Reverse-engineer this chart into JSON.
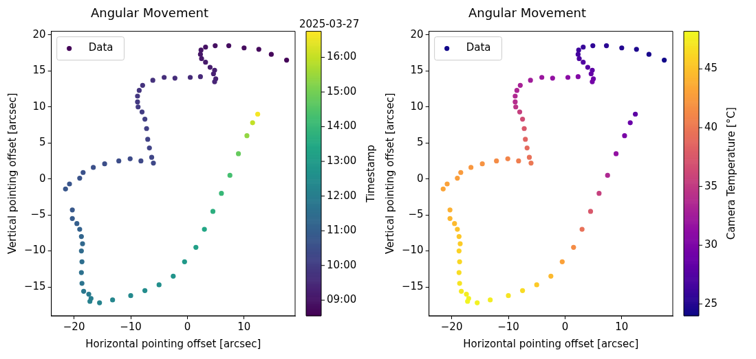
{
  "chart_data": [
    {
      "type": "scatter",
      "title": "Angular Movement",
      "xlabel": "Horizontal pointing offset [arcsec]",
      "ylabel": "Vertical pointing offset [arcsec]",
      "clabel": "Timestamp",
      "annotations": [
        "2025-03-27"
      ],
      "xlim": [
        -24,
        19
      ],
      "ylim": [
        -19,
        20.5
      ],
      "xticks": [
        -20,
        -10,
        0,
        10
      ],
      "yticks": [
        -15,
        -10,
        -5,
        0,
        5,
        10,
        15,
        20
      ],
      "clim": [
        8.55,
        16.75
      ],
      "cticks": [
        {
          "value": 9,
          "label": "09:00"
        },
        {
          "value": 10,
          "label": "10:00"
        },
        {
          "value": 11,
          "label": "11:00"
        },
        {
          "value": 12,
          "label": "12:00"
        },
        {
          "value": 13,
          "label": "13:00"
        },
        {
          "value": 14,
          "label": "14:00"
        },
        {
          "value": 15,
          "label": "15:00"
        },
        {
          "value": 16,
          "label": "16:00"
        }
      ],
      "grid": false,
      "legend": "top left",
      "marker": "circle",
      "series": [
        {
          "name": "Data",
          "x": [
            17.5,
            14.8,
            12.6,
            10.0,
            7.3,
            4.9,
            3.2,
            2.4,
            2.3,
            2.5,
            3.2,
            4.0,
            4.8,
            4.6,
            5.0,
            4.8,
            2.3,
            0.5,
            -2.2,
            -4.1,
            -6.1,
            -7.9,
            -8.5,
            -8.8,
            -8.8,
            -8.7,
            -8.0,
            -7.5,
            -7.2,
            -7.0,
            -6.7,
            -6.3,
            -6.0,
            -8.2,
            -10.1,
            -12.1,
            -14.6,
            -16.6,
            -18.4,
            -19.0,
            -20.8,
            -21.5,
            -20.3,
            -20.3,
            -19.5,
            -19.0,
            -18.7,
            -18.5,
            -18.7,
            -18.6,
            -18.7,
            -18.6,
            -18.3,
            -17.4,
            -17.0,
            -17.2,
            -15.5,
            -13.2,
            -10.0,
            -7.5,
            -5.0,
            -2.5,
            -0.5,
            1.5,
            3.0,
            4.5,
            6.0,
            7.5,
            9.0,
            10.5,
            11.5,
            12.4
          ],
          "values": [
            16.5,
            17.3,
            18.0,
            18.2,
            18.5,
            18.5,
            18.3,
            17.9,
            17.3,
            16.7,
            16.2,
            15.5,
            15.1,
            14.6,
            13.9,
            13.5,
            14.2,
            14.1,
            14.0,
            14.1,
            13.7,
            13.0,
            12.3,
            11.5,
            10.7,
            10.0,
            9.3,
            8.3,
            7.0,
            5.5,
            4.3,
            3.0,
            2.2,
            2.5,
            2.8,
            2.5,
            2.1,
            1.6,
            0.9,
            0.1,
            -0.7,
            -1.4,
            -4.3,
            -5.5,
            -6.2,
            -7.0,
            -8.0,
            -9.0,
            -10.0,
            -11.5,
            -13.0,
            -14.5,
            -15.6,
            -16.0,
            -16.6,
            -17.0,
            -17.2,
            -16.8,
            -16.2,
            -15.5,
            -14.7,
            -13.5,
            -11.5,
            -9.5,
            -7.0,
            -4.5,
            -2.0,
            0.5,
            3.5,
            6.0,
            7.8,
            9.0
          ],
          "cvalues": [
            8.65,
            8.7,
            8.75,
            8.8,
            8.85,
            8.9,
            8.95,
            9.0,
            9.05,
            9.1,
            9.15,
            9.2,
            9.25,
            9.3,
            9.35,
            9.4,
            9.5,
            9.55,
            9.6,
            9.65,
            9.7,
            9.75,
            9.8,
            9.85,
            9.9,
            9.95,
            10.0,
            10.05,
            10.1,
            10.15,
            10.2,
            10.25,
            10.3,
            10.35,
            10.4,
            10.45,
            10.5,
            10.55,
            10.6,
            10.65,
            10.7,
            10.75,
            10.8,
            10.9,
            11.0,
            11.1,
            11.2,
            11.3,
            11.4,
            11.5,
            11.6,
            11.7,
            11.8,
            11.9,
            12.0,
            12.1,
            12.2,
            12.3,
            12.4,
            12.5,
            12.6,
            12.75,
            12.95,
            13.15,
            13.4,
            13.7,
            14.0,
            14.3,
            14.8,
            15.4,
            16.0,
            16.65
          ]
        }
      ]
    },
    {
      "type": "scatter",
      "title": "Angular Movement",
      "xlabel": "Horizontal pointing offset [arcsec]",
      "ylabel": "Vertical pointing offset [arcsec]",
      "clabel": "Camera Temperature [°C]",
      "xlim": [
        -24,
        19
      ],
      "ylim": [
        -19,
        20.5
      ],
      "xticks": [
        -20,
        -10,
        0,
        10
      ],
      "yticks": [
        -15,
        -10,
        -5,
        0,
        5,
        10,
        15,
        20
      ],
      "clim": [
        24,
        48.2
      ],
      "cticks": [
        25,
        30,
        35,
        40,
        45
      ],
      "grid": false,
      "legend": "top left",
      "marker": "circle",
      "series": [
        {
          "name": "Data",
          "x": [
            17.5,
            14.8,
            12.6,
            10.0,
            7.3,
            4.9,
            3.2,
            2.4,
            2.3,
            2.5,
            3.2,
            4.0,
            4.8,
            4.6,
            5.0,
            4.8,
            2.3,
            0.5,
            -2.2,
            -4.1,
            -6.1,
            -7.9,
            -8.5,
            -8.8,
            -8.8,
            -8.7,
            -8.0,
            -7.5,
            -7.2,
            -7.0,
            -6.7,
            -6.3,
            -6.0,
            -8.2,
            -10.1,
            -12.1,
            -14.6,
            -16.6,
            -18.4,
            -19.0,
            -20.8,
            -21.5,
            -20.3,
            -20.3,
            -19.5,
            -19.0,
            -18.7,
            -18.5,
            -18.7,
            -18.6,
            -18.7,
            -18.6,
            -18.3,
            -17.4,
            -17.0,
            -17.2,
            -15.5,
            -13.2,
            -10.0,
            -7.5,
            -5.0,
            -2.5,
            -0.5,
            1.5,
            3.0,
            4.5,
            6.0,
            7.5,
            9.0,
            10.5,
            11.5,
            12.4
          ],
          "values": [
            16.5,
            17.3,
            18.0,
            18.2,
            18.5,
            18.5,
            18.3,
            17.9,
            17.3,
            16.7,
            16.2,
            15.5,
            15.1,
            14.6,
            13.9,
            13.5,
            14.2,
            14.1,
            14.0,
            14.1,
            13.7,
            13.0,
            12.3,
            11.5,
            10.7,
            10.0,
            9.3,
            8.3,
            7.0,
            5.5,
            4.3,
            3.0,
            2.2,
            2.5,
            2.8,
            2.5,
            2.1,
            1.6,
            0.9,
            0.1,
            -0.7,
            -1.4,
            -4.3,
            -5.5,
            -6.2,
            -7.0,
            -8.0,
            -9.0,
            -10.0,
            -11.5,
            -13.0,
            -14.5,
            -15.6,
            -16.0,
            -16.6,
            -17.0,
            -17.2,
            -16.8,
            -16.2,
            -15.5,
            -14.7,
            -13.5,
            -11.5,
            -9.5,
            -7.0,
            -4.5,
            -2.0,
            0.5,
            3.5,
            6.0,
            7.8,
            9.0
          ],
          "cvalues": [
            24.2,
            24.5,
            24.8,
            25.0,
            25.3,
            25.6,
            26.0,
            26.3,
            26.6,
            27.0,
            27.3,
            27.7,
            28.0,
            28.5,
            29.0,
            29.5,
            30.5,
            31.0,
            31.5,
            32.0,
            32.5,
            33.0,
            33.3,
            33.6,
            34.0,
            34.5,
            35.5,
            36.5,
            37.5,
            38.5,
            39.0,
            39.5,
            40.0,
            40.5,
            41.0,
            41.5,
            42.0,
            42.3,
            42.6,
            42.8,
            43.0,
            43.2,
            44.0,
            44.3,
            44.6,
            45.0,
            45.3,
            45.6,
            46.0,
            46.3,
            46.6,
            47.0,
            47.3,
            47.5,
            47.8,
            47.9,
            47.8,
            47.5,
            47.0,
            46.5,
            45.5,
            44.5,
            43.0,
            41.5,
            39.5,
            37.5,
            35.5,
            33.5,
            31.5,
            29.8,
            28.8,
            28.0
          ]
        }
      ]
    }
  ]
}
